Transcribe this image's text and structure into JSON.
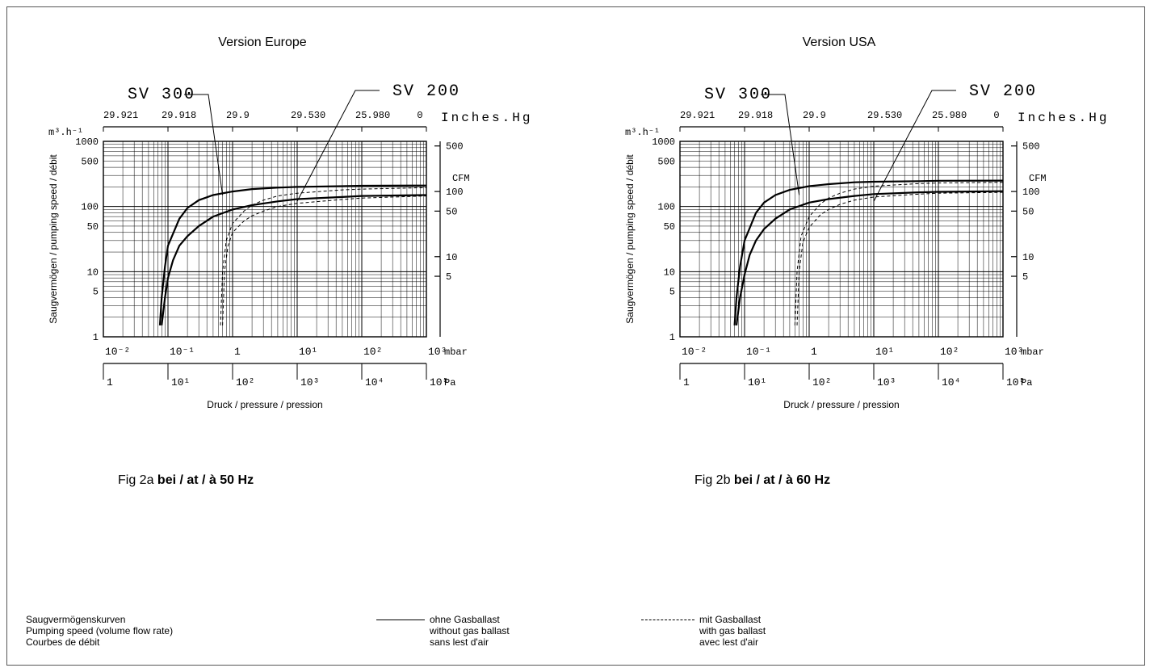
{
  "chart_data": [
    {
      "type": "line",
      "id": "europe",
      "heading": "Version Europe",
      "caption_prefix": "Fig 2a",
      "caption_bold": "bei / at / à 50 Hz",
      "xscale": "log",
      "yscale": "log",
      "xlim": [
        0.01,
        1000
      ],
      "ylim": [
        1,
        1000
      ],
      "ylabel": "Saugvermögen / pumping speed / débit",
      "xlabel": "Druck / pressure / pression",
      "y_unit": "m³.h⁻¹",
      "y_ticks": [
        "1000",
        "500",
        "100",
        "50",
        "10",
        "5",
        "1"
      ],
      "y_tick_values": [
        1000,
        500,
        100,
        50,
        10,
        5,
        1
      ],
      "x_mbar_ticks": [
        "10⁻²",
        "10⁻¹",
        "1",
        "10¹",
        "10²",
        "10³"
      ],
      "x_mbar_values": [
        0.01,
        0.1,
        1,
        10,
        100,
        1000
      ],
      "mbar_unit": "mbar",
      "x_pa_ticks": [
        "1",
        "10¹",
        "10²",
        "10³",
        "10⁴",
        "10⁵"
      ],
      "pa_unit": "Pa",
      "top_ticks": [
        "29.921",
        "29.918",
        "29.9",
        "29.530",
        "25.980",
        "0"
      ],
      "top_unit": "Inches.Hg",
      "cfm_unit": "CFM",
      "cfm_ticks": [
        "500",
        "100",
        "50",
        "10",
        "5"
      ],
      "cfm_values": [
        500,
        100,
        50,
        10,
        5
      ],
      "series_labels": [
        "SV 300",
        "SV 200"
      ],
      "series": [
        {
          "name": "SV 300",
          "ballast": false,
          "x": [
            0.075,
            0.08,
            0.09,
            0.1,
            0.15,
            0.2,
            0.3,
            0.5,
            1,
            2,
            5,
            10,
            50,
            100,
            1000
          ],
          "y": [
            1.5,
            4,
            12,
            25,
            65,
            95,
            125,
            150,
            170,
            185,
            195,
            200,
            205,
            208,
            210
          ]
        },
        {
          "name": "SV 200",
          "ballast": false,
          "x": [
            0.08,
            0.09,
            0.1,
            0.12,
            0.15,
            0.2,
            0.3,
            0.5,
            1,
            2,
            5,
            10,
            50,
            100,
            1000
          ],
          "y": [
            1.5,
            4,
            8,
            15,
            25,
            35,
            50,
            70,
            90,
            105,
            120,
            130,
            140,
            145,
            150
          ]
        },
        {
          "name": "SV 300",
          "ballast": true,
          "x": [
            0.65,
            0.7,
            0.8,
            1,
            1.5,
            2,
            3,
            5,
            10,
            50,
            100,
            1000
          ],
          "y": [
            1.5,
            10,
            30,
            55,
            85,
            105,
            125,
            145,
            160,
            180,
            185,
            195
          ]
        },
        {
          "name": "SV 200",
          "ballast": true,
          "x": [
            0.7,
            0.75,
            0.85,
            1,
            1.5,
            2,
            3,
            5,
            10,
            50,
            100,
            1000
          ],
          "y": [
            1.5,
            10,
            25,
            40,
            60,
            72,
            85,
            100,
            112,
            128,
            135,
            145
          ]
        }
      ]
    },
    {
      "type": "line",
      "id": "usa",
      "heading": "Version USA",
      "caption_prefix": "Fig 2b",
      "caption_bold": "bei / at / à 60 Hz",
      "xscale": "log",
      "yscale": "log",
      "xlim": [
        0.01,
        1000
      ],
      "ylim": [
        1,
        1000
      ],
      "ylabel": "Saugvermögen / pumping speed / débit",
      "xlabel": "Druck / pressure / pression",
      "y_unit": "m³.h⁻¹",
      "y_ticks": [
        "1000",
        "500",
        "100",
        "50",
        "10",
        "5",
        "1"
      ],
      "y_tick_values": [
        1000,
        500,
        100,
        50,
        10,
        5,
        1
      ],
      "x_mbar_ticks": [
        "10⁻²",
        "10⁻¹",
        "1",
        "10¹",
        "10²",
        "10³"
      ],
      "x_mbar_values": [
        0.01,
        0.1,
        1,
        10,
        100,
        1000
      ],
      "mbar_unit": "mbar",
      "x_pa_ticks": [
        "1",
        "10¹",
        "10²",
        "10³",
        "10⁴",
        "10⁵"
      ],
      "pa_unit": "Pa",
      "top_ticks": [
        "29.921",
        "29.918",
        "29.9",
        "29.530",
        "25.980",
        "0"
      ],
      "top_unit": "Inches.Hg",
      "cfm_unit": "CFM",
      "cfm_ticks": [
        "500",
        "100",
        "50",
        "10",
        "5"
      ],
      "cfm_values": [
        500,
        100,
        50,
        10,
        5
      ],
      "series_labels": [
        "SV 300",
        "SV 200"
      ],
      "series": [
        {
          "name": "SV 300",
          "ballast": false,
          "x": [
            0.07,
            0.075,
            0.085,
            0.1,
            0.15,
            0.2,
            0.3,
            0.5,
            1,
            2,
            5,
            10,
            50,
            100,
            1000
          ],
          "y": [
            1.5,
            4,
            12,
            30,
            80,
            115,
            150,
            180,
            205,
            220,
            235,
            240,
            245,
            248,
            250
          ]
        },
        {
          "name": "SV 200",
          "ballast": false,
          "x": [
            0.075,
            0.085,
            0.1,
            0.12,
            0.15,
            0.2,
            0.3,
            0.5,
            1,
            2,
            5,
            10,
            50,
            100,
            1000
          ],
          "y": [
            1.5,
            4,
            9,
            18,
            30,
            45,
            65,
            90,
            115,
            130,
            145,
            155,
            165,
            168,
            172
          ]
        },
        {
          "name": "SV 300",
          "ballast": true,
          "x": [
            0.6,
            0.65,
            0.75,
            1,
            1.5,
            2,
            3,
            5,
            10,
            50,
            100,
            1000
          ],
          "y": [
            1.5,
            10,
            35,
            70,
            110,
            135,
            160,
            185,
            205,
            225,
            230,
            235
          ]
        },
        {
          "name": "SV 200",
          "ballast": true,
          "x": [
            0.65,
            0.7,
            0.8,
            1,
            1.5,
            2,
            3,
            5,
            10,
            50,
            100,
            1000
          ],
          "y": [
            1.5,
            10,
            28,
            48,
            75,
            90,
            108,
            125,
            140,
            155,
            160,
            165
          ]
        }
      ]
    }
  ],
  "legend": {
    "title_lines": [
      "Saugvermögenskurven",
      "Pumping speed (volume flow rate)",
      "Courbes de débit"
    ],
    "solid_lines": [
      "ohne Gasballast",
      "without gas ballast",
      "sans lest d'air"
    ],
    "dashed_lines": [
      "mit Gasballast",
      "with gas ballast",
      "avec lest d'air"
    ]
  }
}
